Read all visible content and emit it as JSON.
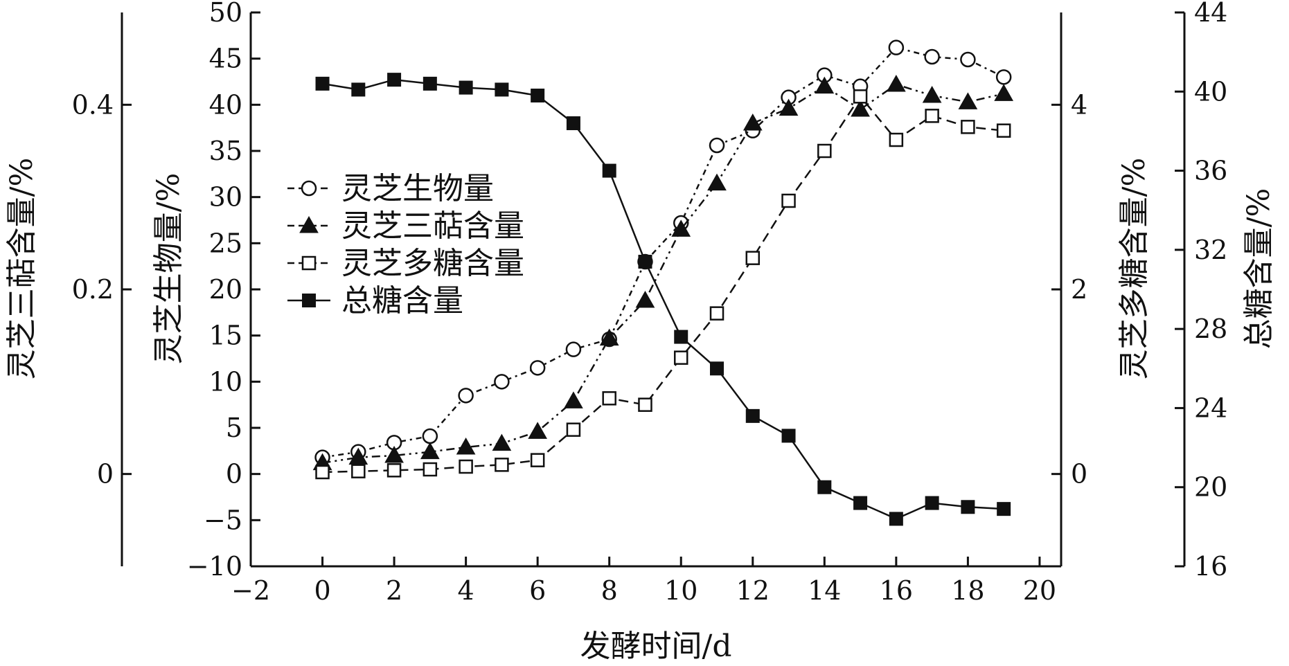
{
  "chart_data": {
    "type": "line",
    "xlabel": "发酵时间/d",
    "x_ticks": [
      "−2",
      "0",
      "2",
      "4",
      "6",
      "8",
      "10",
      "12",
      "14",
      "16",
      "18",
      "20"
    ],
    "xlim": [
      -2,
      20.6
    ],
    "axes": {
      "triterpene": {
        "label": "灵芝三萜含量/%",
        "ylim": [
          -0.1,
          0.5
        ],
        "ticks": [
          "0",
          "0.2",
          "0.4"
        ]
      },
      "biomass": {
        "label": "灵芝生物量/%",
        "ylim": [
          -10,
          50
        ],
        "ticks": [
          "−10",
          "−5",
          "0",
          "5",
          "10",
          "15",
          "20",
          "25",
          "30",
          "35",
          "40",
          "45",
          "50"
        ]
      },
      "polysaccharide": {
        "label": "灵芝多糖含量/%",
        "ylim": [
          -1,
          5
        ],
        "ticks": [
          "0",
          "2",
          "4"
        ]
      },
      "total_sugar": {
        "label": "总糖含量/%",
        "ylim": [
          16,
          44
        ],
        "ticks": [
          "16",
          "20",
          "24",
          "28",
          "32",
          "36",
          "40",
          "44"
        ]
      }
    },
    "x": [
      0,
      1,
      2,
      3,
      4,
      5,
      6,
      7,
      8,
      9,
      10,
      11,
      12,
      13,
      14,
      15,
      16,
      17,
      18,
      19
    ],
    "series": [
      {
        "name": "灵芝生物量",
        "axis": "biomass",
        "marker": "open-circle",
        "dash": "8 6 3 6",
        "values": [
          1.8,
          2.4,
          3.4,
          4.1,
          8.5,
          10.0,
          11.5,
          13.5,
          14.6,
          23.0,
          27.2,
          35.6,
          37.2,
          40.8,
          43.2,
          42.0,
          46.2,
          45.2,
          44.9,
          43.0
        ]
      },
      {
        "name": "灵芝三萜含量",
        "axis": "biomass",
        "marker": "filled-triangle",
        "dash": "12 6 3 6 3 6",
        "values": [
          1.2,
          1.8,
          2.0,
          2.4,
          2.9,
          3.3,
          4.6,
          7.9,
          14.7,
          18.8,
          26.5,
          31.5,
          38.0,
          39.6,
          42.0,
          39.5,
          42.2,
          41.0,
          40.3,
          41.2
        ]
      },
      {
        "name": "灵芝多糖含量",
        "axis": "biomass",
        "marker": "open-square",
        "dash": "14 8",
        "values": [
          0.2,
          0.3,
          0.4,
          0.5,
          0.8,
          1.0,
          1.5,
          4.8,
          8.2,
          7.5,
          12.6,
          17.4,
          23.4,
          29.6,
          35.0,
          40.9,
          36.2,
          38.8,
          37.6,
          37.2
        ]
      },
      {
        "name": "总糖含量",
        "axis": "total_sugar",
        "marker": "filled-square",
        "dash": "none",
        "values": [
          40.4,
          40.1,
          40.6,
          40.4,
          40.2,
          40.1,
          39.8,
          38.4,
          36.0,
          31.4,
          27.6,
          26.0,
          23.6,
          22.6,
          20.0,
          19.2,
          18.4,
          19.2,
          19.0,
          18.9
        ]
      }
    ],
    "legend": {
      "placement": "center-left",
      "items": [
        "灵芝生物量",
        "灵芝三萜含量",
        "灵芝多糖含量",
        "总糖含量"
      ]
    },
    "grid": false
  }
}
